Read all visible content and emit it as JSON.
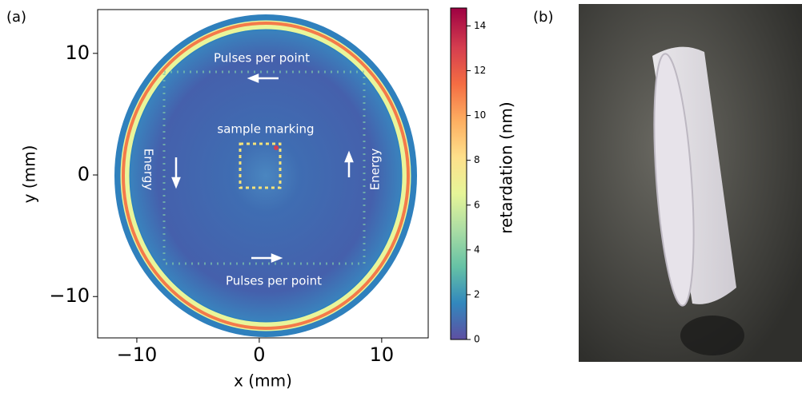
{
  "panels": [
    "(a)",
    "(b)"
  ],
  "chart_data": {
    "type": "heatmap",
    "xlabel": "x (mm)",
    "ylabel": "y (mm)",
    "xlim": [
      -13.2,
      13.8
    ],
    "ylim": [
      -13.4,
      13.6
    ],
    "xticks": [
      {
        "value": -10,
        "label": "−10"
      },
      0,
      10
    ],
    "yticks": [
      {
        "value": -10,
        "label": "−10"
      },
      0,
      10
    ],
    "annotations": [
      "Pulses per point",
      "Pulses per point",
      "sample marking",
      "Energy",
      "Energy"
    ],
    "colorbar": {
      "label": "retardation (nm)",
      "lim": [
        0,
        14.8
      ],
      "ticks": [
        0,
        2,
        4,
        6,
        8,
        10,
        12,
        14
      ]
    }
  }
}
